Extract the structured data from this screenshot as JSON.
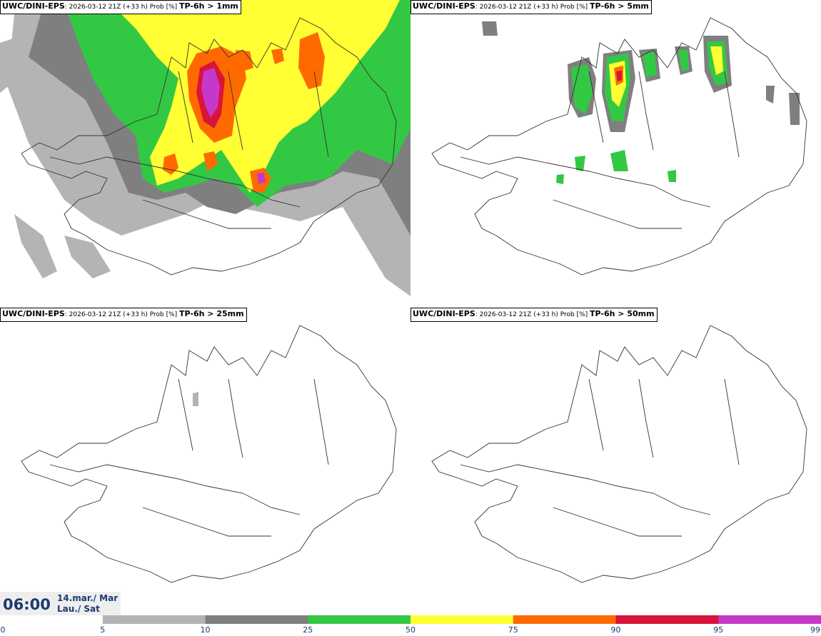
{
  "panels": [
    {
      "model": "UWC/DINI-EPS",
      "meta": ": 2026-03-12 21Z (+33 h) Prob [%] ",
      "var": "TP-6h > 1mm"
    },
    {
      "model": "UWC/DINI-EPS",
      "meta": ": 2026-03-12 21Z (+33 h) Prob [%] ",
      "var": "TP-6h > 5mm"
    },
    {
      "model": "UWC/DINI-EPS",
      "meta": ": 2026-03-12 21Z (+33 h) Prob [%] ",
      "var": "TP-6h > 25mm"
    },
    {
      "model": "UWC/DINI-EPS",
      "meta": ": 2026-03-12 21Z (+33 h) Prob [%] ",
      "var": "TP-6h > 50mm"
    }
  ],
  "time": {
    "hour": "06:00",
    "date_line1": "14.mar./ Mar",
    "date_line2": "Lau./ Sat"
  },
  "legend": {
    "ticks": [
      "0",
      "5",
      "10",
      "25",
      "50",
      "75",
      "90",
      "95",
      "99"
    ],
    "colors": [
      "#ffffff",
      "#b4b4b4",
      "#7f7f7f",
      "#33c844",
      "#ffff33",
      "#ff6a00",
      "#d8143a",
      "#c638c9",
      "#f0b0ec"
    ]
  }
}
